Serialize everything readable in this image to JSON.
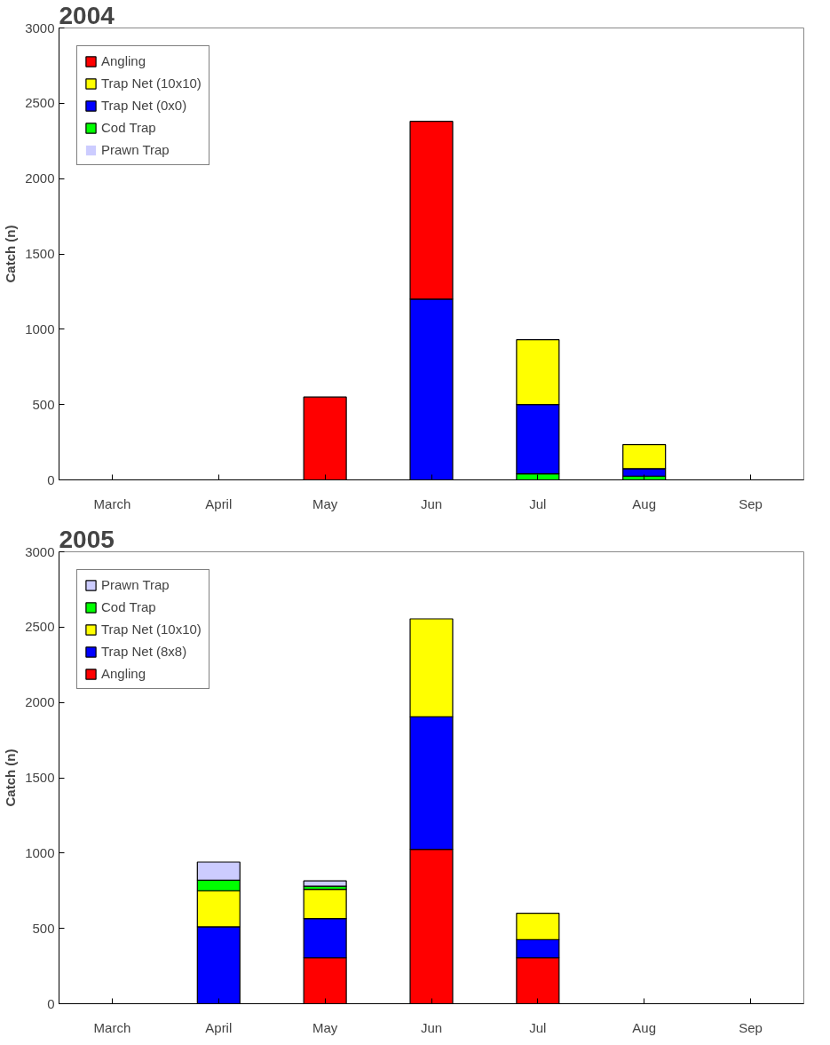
{
  "chart_data": [
    {
      "type": "bar",
      "title": "2004",
      "ylabel": "Catch (n)",
      "stacked": true,
      "categories": [
        "March",
        "April",
        "May",
        "Jun",
        "Jul",
        "Aug",
        "Sep"
      ],
      "ylim": [
        0,
        3000
      ],
      "yticks": [
        0,
        500,
        1000,
        1500,
        2000,
        2500,
        3000
      ],
      "grid": false,
      "legend": "top left",
      "series": [
        {
          "name": "Prawn Trap",
          "color": "#ccccff",
          "values": [
            0,
            0,
            0,
            0,
            0,
            0,
            0
          ]
        },
        {
          "name": "Cod Trap",
          "color": "#00ff00",
          "values": [
            0,
            0,
            0,
            0,
            40,
            25,
            0
          ]
        },
        {
          "name": "Trap Net (0x0)",
          "color": "#0000ff",
          "values": [
            0,
            0,
            0,
            1200,
            460,
            50,
            0
          ]
        },
        {
          "name": "Trap Net (10x10)",
          "color": "#ffff00",
          "values": [
            0,
            0,
            0,
            0,
            430,
            160,
            0
          ]
        },
        {
          "name": "Angling",
          "color": "#ff0000",
          "values": [
            0,
            0,
            550,
            1180,
            0,
            0,
            0
          ]
        }
      ]
    },
    {
      "type": "bar",
      "title": "2005",
      "ylabel": "Catch (n)",
      "stacked": true,
      "categories": [
        "March",
        "April",
        "May",
        "Jun",
        "Jul",
        "Aug",
        "Sep"
      ],
      "ylim": [
        0,
        3000
      ],
      "yticks": [
        0,
        500,
        1000,
        1500,
        2000,
        2500,
        3000
      ],
      "grid": false,
      "legend": "top left",
      "series": [
        {
          "name": "Angling",
          "color": "#ff0000",
          "values": [
            0,
            null,
            305,
            1025,
            305,
            0,
            0
          ]
        },
        {
          "name": "Trap Net (8x8)",
          "color": "#0000ff",
          "values": [
            0,
            510,
            260,
            880,
            120,
            0,
            0
          ]
        },
        {
          "name": "Trap Net (10x10)",
          "color": "#ffff00",
          "values": [
            0,
            240,
            195,
            650,
            175,
            0,
            0
          ]
        },
        {
          "name": "Cod Trap",
          "color": "#00ff00",
          "values": [
            0,
            70,
            20,
            0,
            0,
            0,
            0
          ]
        },
        {
          "name": "Prawn Trap",
          "color": "#ccccff",
          "values": [
            0,
            120,
            35,
            0,
            0,
            0,
            0
          ]
        }
      ]
    }
  ]
}
